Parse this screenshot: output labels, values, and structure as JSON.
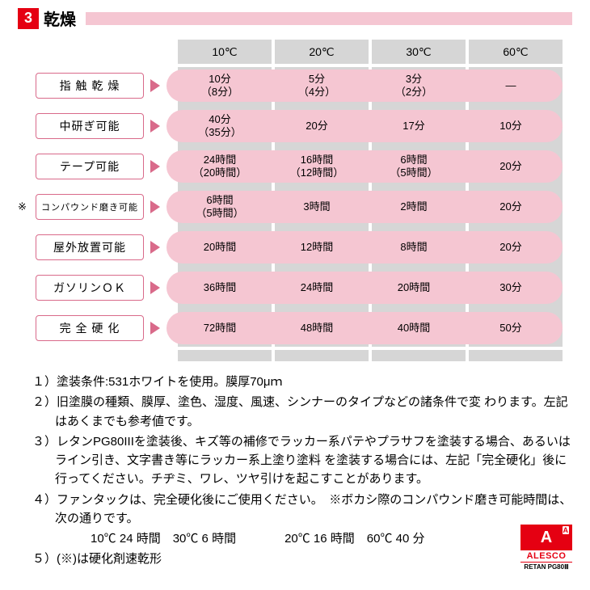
{
  "header": {
    "number": "3",
    "title": "乾燥",
    "bar_color": "#f5c6d2",
    "badge_color": "#e50012"
  },
  "columns": [
    "10℃",
    "20℃",
    "30℃",
    "60℃"
  ],
  "row_border_color": "#d96a8a",
  "arrow_color": "#d96a8a",
  "pill_color": "#f5c6d2",
  "col_bg_color": "#d6d6d6",
  "rows": [
    {
      "note": "",
      "label": "指 触 乾 燥",
      "cells": [
        {
          "l1": "10分",
          "l2": "（8分）"
        },
        {
          "l1": "5分",
          "l2": "（4分）"
        },
        {
          "l1": "3分",
          "l2": "（2分）"
        },
        {
          "l1": "—",
          "l2": ""
        }
      ]
    },
    {
      "note": "",
      "label": "中研ぎ可能",
      "cells": [
        {
          "l1": "40分",
          "l2": "（35分）"
        },
        {
          "l1": "20分",
          "l2": ""
        },
        {
          "l1": "17分",
          "l2": ""
        },
        {
          "l1": "10分",
          "l2": ""
        }
      ]
    },
    {
      "note": "",
      "label": "テープ可能",
      "cells": [
        {
          "l1": "24時間",
          "l2": "（20時間）"
        },
        {
          "l1": "16時間",
          "l2": "（12時間）"
        },
        {
          "l1": "6時間",
          "l2": "（5時間）"
        },
        {
          "l1": "20分",
          "l2": ""
        }
      ]
    },
    {
      "note": "※",
      "label": "コンパウンド磨き可能",
      "cells": [
        {
          "l1": "6時間",
          "l2": "（5時間）"
        },
        {
          "l1": "3時間",
          "l2": ""
        },
        {
          "l1": "2時間",
          "l2": ""
        },
        {
          "l1": "20分",
          "l2": ""
        }
      ]
    },
    {
      "note": "",
      "label": "屋外放置可能",
      "cells": [
        {
          "l1": "20時間",
          "l2": ""
        },
        {
          "l1": "12時間",
          "l2": ""
        },
        {
          "l1": "8時間",
          "l2": ""
        },
        {
          "l1": "20分",
          "l2": ""
        }
      ]
    },
    {
      "note": "",
      "label": "ガソリンＯＫ",
      "cells": [
        {
          "l1": "36時間",
          "l2": ""
        },
        {
          "l1": "24時間",
          "l2": ""
        },
        {
          "l1": "20時間",
          "l2": ""
        },
        {
          "l1": "30分",
          "l2": ""
        }
      ]
    },
    {
      "note": "",
      "label": "完 全 硬 化",
      "cells": [
        {
          "l1": "72時間",
          "l2": ""
        },
        {
          "l1": "48時間",
          "l2": ""
        },
        {
          "l1": "40時間",
          "l2": ""
        },
        {
          "l1": "50分",
          "l2": ""
        }
      ]
    }
  ],
  "notes": {
    "n1": "１）塗装条件:531ホワイトを使用。膜厚70μｍ",
    "n2a": "２）旧塗膜の種類、膜厚、塗色、湿度、風速、シンナーのタイプなどの諸条件で変  わります。左記はあくまでも参考値です。",
    "n3a": "３）レタンPG80IIIを塗装後、キズ等の補修でラッカー系パテやプラサフを塗装する場合、あるいはライン引き、文字書き等にラッカー系上塗り塗料  を塗装する場合には、左記「完全硬化」後に行ってください。チヂミ、ワレ、ツヤ引けを起こすことがあります。",
    "n4a": "４）ファンタックは、完全硬化後にご使用ください。　※ボカシ際のコンパウンド磨き可能時間は、次の通りです。",
    "n4c": "10℃ 24 時間　30℃ 6 時間　　　　20℃ 16 時間　60℃ 40 分",
    "n5": "５）(※)は硬化剤速乾形"
  },
  "logo": {
    "top": "A",
    "mid": "ALESCO",
    "bot": "RETAN PG80Ⅲ"
  }
}
